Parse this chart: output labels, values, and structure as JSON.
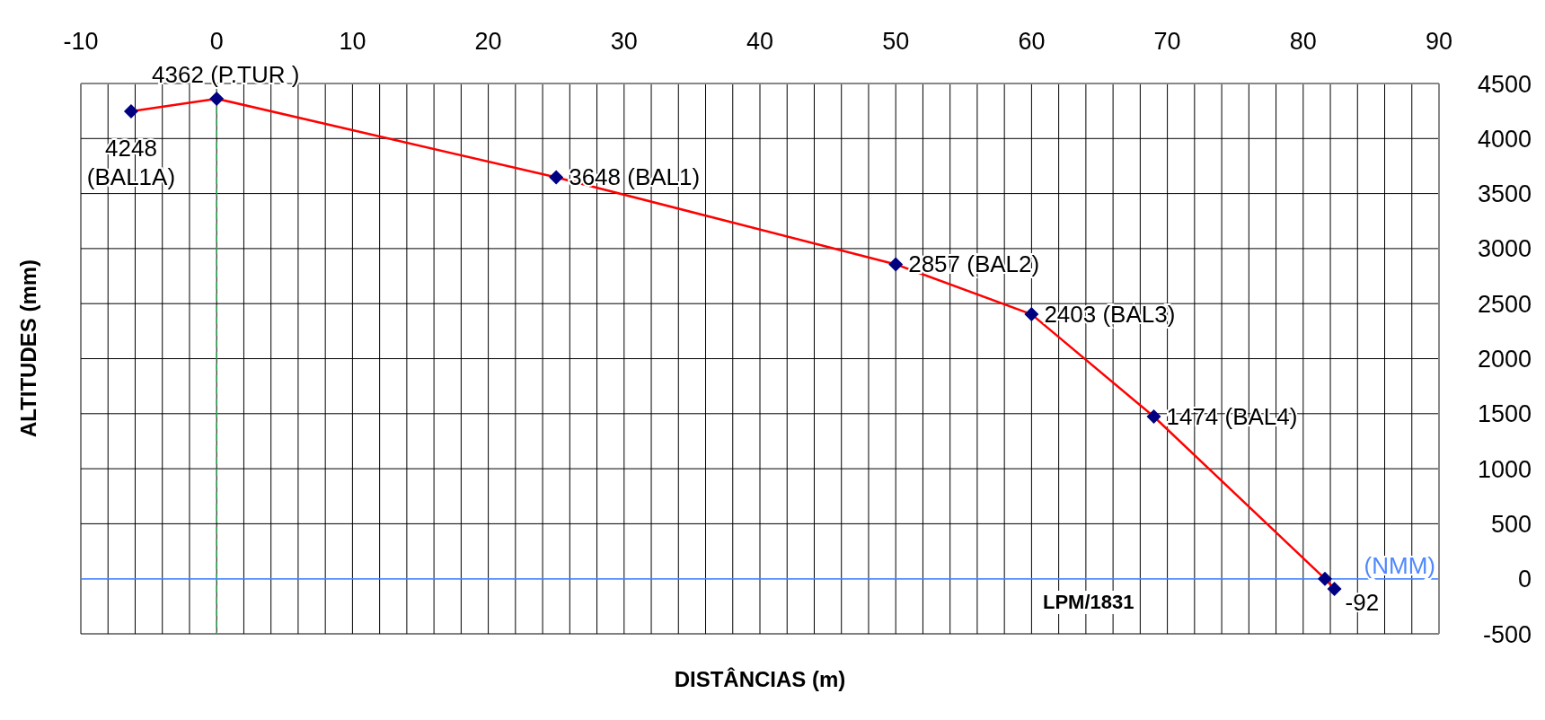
{
  "chart_data": {
    "type": "line",
    "xlabel": "DISTÂNCIAS (m)",
    "ylabel": "ALTITUDES (mm)",
    "x": [
      -6.3,
      0,
      25,
      50,
      60,
      69,
      81.6,
      82.3
    ],
    "series": [
      {
        "color": "#ff0000",
        "colors": [
          "#000080",
          "#000080",
          "#000080",
          "#000080",
          "#000080",
          "#000080",
          "#000080",
          "#000080"
        ],
        "values": [
          4248,
          4362,
          3648,
          2857,
          2403,
          1474,
          0,
          -92
        ],
        "value_labels": [
          "4248\n(BAL1A)",
          "4362 (P.TUR )",
          "3648 (BAL1)",
          "2857 (BAL2)",
          "2403 (BAL3)",
          "1474 (BAL4)",
          null,
          "-92"
        ]
      }
    ],
    "marker": "diamond",
    "line_style": "solid",
    "grid": true,
    "legend": false,
    "xlim": [
      -10,
      90
    ],
    "xticks": [
      -10,
      {
        "value": -8,
        "label": null
      },
      {
        "value": -6,
        "label": null
      },
      {
        "value": -4,
        "label": null
      },
      {
        "value": -2,
        "label": null
      },
      0,
      {
        "value": 2,
        "label": null
      },
      {
        "value": 4,
        "label": null
      },
      {
        "value": 6,
        "label": null
      },
      {
        "value": 8,
        "label": null
      },
      10,
      {
        "value": 12,
        "label": null
      },
      {
        "value": 14,
        "label": null
      },
      {
        "value": 16,
        "label": null
      },
      {
        "value": 18,
        "label": null
      },
      20,
      {
        "value": 22,
        "label": null
      },
      {
        "value": 24,
        "label": null
      },
      {
        "value": 26,
        "label": null
      },
      {
        "value": 28,
        "label": null
      },
      30,
      {
        "value": 32,
        "label": null
      },
      {
        "value": 34,
        "label": null
      },
      {
        "value": 36,
        "label": null
      },
      {
        "value": 38,
        "label": null
      },
      40,
      {
        "value": 42,
        "label": null
      },
      {
        "value": 44,
        "label": null
      },
      {
        "value": 46,
        "label": null
      },
      {
        "value": 48,
        "label": null
      },
      50,
      {
        "value": 52,
        "label": null
      },
      {
        "value": 54,
        "label": null
      },
      {
        "value": 56,
        "label": null
      },
      {
        "value": 58,
        "label": null
      },
      60,
      {
        "value": 62,
        "label": null
      },
      {
        "value": 64,
        "label": null
      },
      {
        "value": 66,
        "label": null
      },
      {
        "value": 68,
        "label": null
      },
      70,
      {
        "value": 72,
        "label": null
      },
      {
        "value": 74,
        "label": null
      },
      {
        "value": 76,
        "label": null
      },
      {
        "value": 78,
        "label": null
      },
      80,
      {
        "value": 82,
        "label": null
      },
      {
        "value": 84,
        "label": null
      },
      {
        "value": 86,
        "label": null
      },
      {
        "value": 88,
        "label": null
      },
      90
    ],
    "ylim": [
      -500,
      4500
    ],
    "yticks": [
      -500,
      0,
      500,
      1000,
      1500,
      2000,
      2500,
      3000,
      3500,
      4000,
      4500
    ],
    "ref_lines": [
      {
        "axis": "x",
        "value": 0,
        "color": "#33aa55",
        "line_style": "dashed"
      },
      {
        "axis": "y",
        "value": 0,
        "label": "(NMM)",
        "color": "#4d88ff",
        "line_style": "solid"
      }
    ],
    "annotations": [
      "LPM/1831"
    ]
  }
}
